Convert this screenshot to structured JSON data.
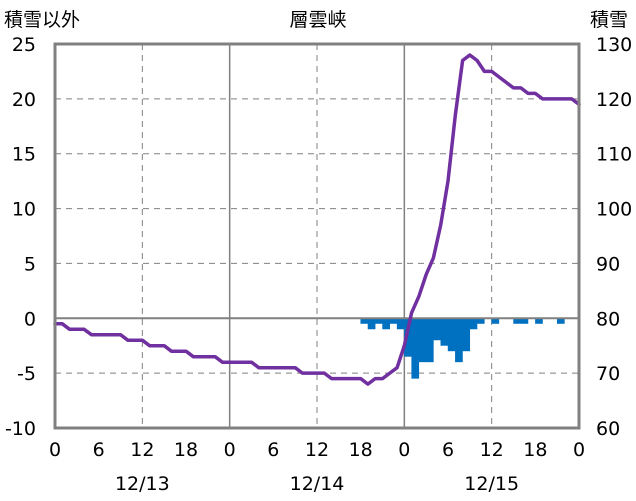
{
  "chart_data": {
    "type": "bar+line",
    "title": "層雲峡",
    "left_axis_label": "積雪以外",
    "right_axis_label": "積雪",
    "left_ylim": [
      -10,
      25
    ],
    "left_ticks": [
      25,
      20,
      15,
      10,
      5,
      0,
      -5,
      -10
    ],
    "right_ylim": [
      60,
      130
    ],
    "right_ticks": [
      130,
      120,
      110,
      100,
      90,
      80,
      70,
      60
    ],
    "x_range_hours": [
      0,
      72
    ],
    "x_tick_labels": [
      "0",
      "6",
      "12",
      "18",
      "0",
      "6",
      "12",
      "18",
      "0",
      "6",
      "12",
      "18",
      "0"
    ],
    "date_labels": [
      {
        "label": "12/13",
        "hour": 12
      },
      {
        "label": "12/14",
        "hour": 36
      },
      {
        "label": "12/15",
        "hour": 60
      }
    ],
    "grid": true,
    "colors": {
      "bar": "#0070c0",
      "line": "#7030a0",
      "grid": "#808080",
      "frame": "#808080"
    },
    "bars": {
      "axis": "left",
      "hours": [
        42,
        43,
        44,
        45,
        46,
        47,
        48,
        49,
        50,
        51,
        52,
        53,
        54,
        55,
        56,
        57,
        58,
        59,
        60,
        61,
        62,
        63,
        64,
        65,
        66,
        67,
        68,
        69,
        70,
        71,
        72
      ],
      "values": [
        -0.5,
        -1,
        -0.5,
        -1,
        -0.5,
        -1,
        -3.5,
        -5.5,
        -4,
        -4,
        -2,
        -2.5,
        -3,
        -4,
        -3,
        -1,
        -0.5,
        0,
        -0.5,
        0,
        0,
        -0.5,
        -0.5,
        0,
        -0.5,
        0,
        0,
        -0.5,
        0,
        0,
        0
      ]
    },
    "line": {
      "axis": "right",
      "hours": [
        0,
        1,
        2,
        3,
        4,
        5,
        6,
        7,
        8,
        9,
        10,
        11,
        12,
        13,
        14,
        15,
        16,
        17,
        18,
        19,
        20,
        21,
        22,
        23,
        24,
        25,
        26,
        27,
        28,
        29,
        30,
        31,
        32,
        33,
        34,
        35,
        36,
        37,
        38,
        39,
        40,
        41,
        42,
        43,
        44,
        45,
        46,
        47,
        48,
        49,
        50,
        51,
        52,
        53,
        54,
        55,
        56,
        57,
        58,
        59,
        60,
        61,
        62,
        63,
        64,
        65,
        66,
        67,
        68,
        69,
        70,
        71,
        72
      ],
      "values": [
        79,
        79,
        78,
        78,
        78,
        77,
        77,
        77,
        77,
        77,
        76,
        76,
        76,
        75,
        75,
        75,
        74,
        74,
        74,
        73,
        73,
        73,
        73,
        72,
        72,
        72,
        72,
        72,
        71,
        71,
        71,
        71,
        71,
        71,
        70,
        70,
        70,
        70,
        69,
        69,
        69,
        69,
        69,
        68,
        69,
        69,
        70,
        71,
        75,
        81,
        84,
        88,
        91,
        97,
        105,
        117,
        127,
        128,
        127,
        125,
        125,
        124,
        123,
        122,
        122,
        121,
        121,
        120,
        120,
        120,
        120,
        120,
        119
      ]
    }
  }
}
